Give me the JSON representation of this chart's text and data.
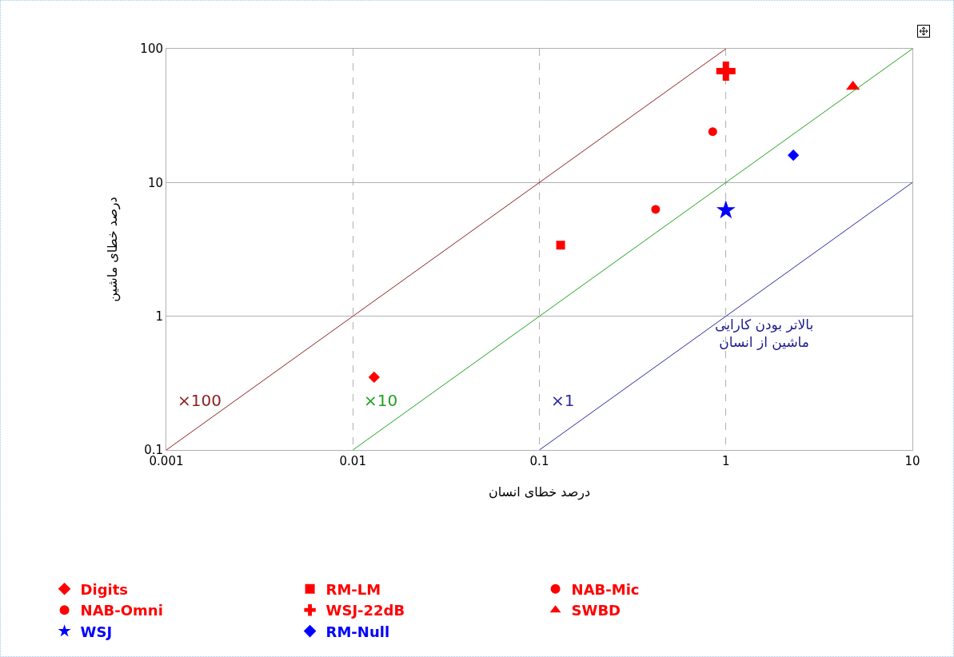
{
  "chart_data": {
    "type": "scatter",
    "xlabel": "درصد خطای انسان",
    "ylabel": "درصد خطای ماشین",
    "log": "xy",
    "grid": true,
    "legend": "bottom",
    "xlim": [
      0.001,
      10
    ],
    "xticks": [
      0.001,
      0.01,
      0.1,
      1,
      10
    ],
    "ylim": [
      0.1,
      100
    ],
    "yticks": [
      0.1,
      1,
      10,
      100
    ],
    "series": [
      {
        "name": "Digits",
        "color": "#ff0000",
        "marker": "diamond",
        "x": [
          0.013
        ],
        "values": [
          0.35
        ]
      },
      {
        "name": "RM-LM",
        "color": "#ff0000",
        "marker": "square",
        "x": [
          0.13
        ],
        "values": [
          3.4
        ]
      },
      {
        "name": "NAB-Mic",
        "color": "#ff0000",
        "marker": "circle",
        "x": [
          0.42
        ],
        "values": [
          6.3
        ]
      },
      {
        "name": "NAB-Omni",
        "color": "#ff0000",
        "marker": "circle",
        "x": [
          0.85
        ],
        "values": [
          24
        ]
      },
      {
        "name": "WSJ-22dB",
        "color": "#ff0000",
        "marker": "cross",
        "x": [
          1.0
        ],
        "values": [
          68
        ]
      },
      {
        "name": "SWBD",
        "color": "#ff0000",
        "marker": "triangle",
        "x": [
          4.8
        ],
        "values": [
          52
        ]
      },
      {
        "name": "WSJ",
        "color": "#0000ff",
        "marker": "star",
        "x": [
          1.0
        ],
        "values": [
          6.2
        ]
      },
      {
        "name": "RM-Null",
        "color": "#0000ff",
        "marker": "diamond",
        "x": [
          2.3
        ],
        "values": [
          16
        ]
      },
      {
        "name": "×100",
        "type": "line",
        "color": "#8b2222",
        "marker": "none",
        "x": [
          0.001,
          1
        ],
        "values": [
          0.1,
          100
        ]
      },
      {
        "name": "×10",
        "type": "line",
        "color": "#22a022",
        "marker": "none",
        "x": [
          0.01,
          10
        ],
        "values": [
          0.1,
          100
        ]
      },
      {
        "name": "×1",
        "type": "line",
        "color": "#2a2aa0",
        "marker": "none",
        "x": [
          0.1,
          10
        ],
        "values": [
          0.1,
          10
        ]
      }
    ],
    "annotations": [
      "بالاتر بودن کارایی\nماشین از انسان"
    ]
  }
}
